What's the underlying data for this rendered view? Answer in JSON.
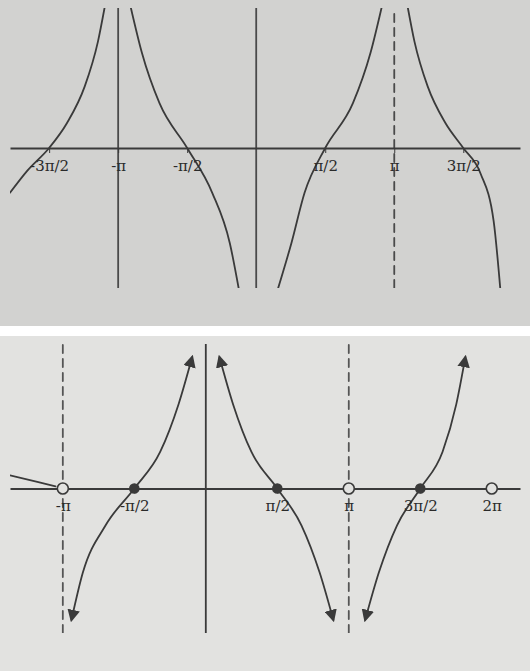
{
  "chart_data": [
    {
      "type": "line",
      "xlim": [
        -5.6,
        6.0
      ],
      "ylim": [
        -5,
        5
      ],
      "xticks": [
        {
          "value": -4.71,
          "label": "-3π/2"
        },
        {
          "value": -3.14,
          "label": "-π"
        },
        {
          "value": -1.57,
          "label": "-π/2"
        },
        {
          "value": 1.57,
          "label": "π/2"
        },
        {
          "value": 3.14,
          "label": "π"
        },
        {
          "value": 4.71,
          "label": "3π/2"
        }
      ],
      "tick_labels": "x",
      "grid": false,
      "series": [
        {
          "type": "line",
          "color": "#3a3a3a",
          "line_style": "solid",
          "x": [
            -5.6,
            -5.2,
            -4.71,
            -4.3,
            -3.9,
            -3.6,
            -3.45
          ],
          "values": [
            -1.6,
            -0.8,
            0,
            0.9,
            2.2,
            3.8,
            5
          ]
        },
        {
          "type": "line",
          "color": "#3a3a3a",
          "line_style": "solid",
          "x": [
            -2.85,
            -2.6,
            -2.2,
            -1.57,
            -1.0,
            -0.6,
            -0.4
          ],
          "values": [
            5,
            3.4,
            1.6,
            0,
            -1.6,
            -3.4,
            -5
          ]
        },
        {
          "type": "line",
          "color": "#3a3a3a",
          "line_style": "solid",
          "x": [
            0.5,
            0.8,
            1.1,
            1.57,
            2.2,
            2.6,
            2.85
          ],
          "values": [
            -5,
            -3.4,
            -1.6,
            0,
            1.6,
            3.4,
            5
          ]
        },
        {
          "type": "line",
          "color": "#3a3a3a",
          "line_style": "solid",
          "x": [
            3.45,
            3.6,
            3.9,
            4.3,
            4.71,
            5.1,
            5.4,
            5.55
          ],
          "values": [
            5,
            3.8,
            2.2,
            0.9,
            0,
            -0.9,
            -2.6,
            -5
          ]
        },
        {
          "type": "line",
          "color": "#4a4a4a",
          "line_style": "solid",
          "x": [
            -3.14,
            -3.14
          ],
          "values": [
            -5,
            5
          ]
        },
        {
          "type": "line",
          "color": "#4a4a4a",
          "line_style": "solid",
          "x": [
            0,
            0
          ],
          "values": [
            -5,
            5
          ]
        },
        {
          "type": "line",
          "color": "#4a4a4a",
          "line_style": "dashed",
          "x": [
            3.14,
            3.14
          ],
          "values": [
            -5,
            5
          ]
        }
      ]
    },
    {
      "type": "line",
      "xlim": [
        -4.3,
        6.9
      ],
      "ylim": [
        -5.5,
        5.5
      ],
      "xticks": [
        {
          "value": -3.14,
          "label": "-π"
        },
        {
          "value": -1.57,
          "label": "-π/2"
        },
        {
          "value": 1.57,
          "label": "π/2"
        },
        {
          "value": 3.14,
          "label": "π"
        },
        {
          "value": 4.71,
          "label": "3π/2"
        },
        {
          "value": 6.28,
          "label": "2π"
        }
      ],
      "tick_labels": "x",
      "grid": false,
      "series": [
        {
          "type": "line",
          "color": "#3a3a3a",
          "line_style": "solid",
          "x": [
            -4.3,
            -3.7,
            -3.3
          ],
          "values": [
            0.5,
            0.25,
            0.08
          ]
        },
        {
          "type": "line",
          "color": "#3a3a3a",
          "line_style": "solid",
          "marker": "arrow",
          "x": [
            -2.95,
            -2.7,
            -2.2,
            -1.57,
            -1.0,
            -0.6,
            -0.3
          ],
          "values": [
            -5,
            -3.2,
            -1.4,
            0,
            1.4,
            3.2,
            5
          ]
        },
        {
          "type": "line",
          "color": "#3a3a3a",
          "line_style": "solid",
          "marker": "arrow",
          "x": [
            0.3,
            0.6,
            1.0,
            1.57,
            2.1,
            2.5,
            2.8
          ],
          "values": [
            5,
            3.2,
            1.4,
            0,
            -1.4,
            -3.2,
            -5
          ]
        },
        {
          "type": "line",
          "color": "#3a3a3a",
          "line_style": "solid",
          "marker": "arrow",
          "x": [
            3.5,
            3.8,
            4.2,
            4.71,
            5.2,
            5.5,
            5.7
          ],
          "values": [
            -5,
            -3.2,
            -1.4,
            0,
            1.4,
            3.2,
            5
          ]
        },
        {
          "type": "line",
          "color": "#555555",
          "line_style": "dashed",
          "x": [
            -3.14,
            -3.14
          ],
          "values": [
            -5.5,
            5.5
          ]
        },
        {
          "type": "line",
          "color": "#3a3a3a",
          "line_style": "solid",
          "x": [
            0,
            0
          ],
          "values": [
            -5.5,
            5.5
          ]
        },
        {
          "type": "line",
          "color": "#555555",
          "line_style": "dashed",
          "x": [
            3.14,
            3.14
          ],
          "values": [
            -5.5,
            5.5
          ]
        },
        {
          "type": "scatter",
          "color": "#3a3a3a",
          "marker": "open-circle",
          "x": [
            -3.14,
            3.14,
            6.28
          ],
          "values": [
            0,
            0,
            0
          ]
        },
        {
          "type": "scatter",
          "color": "#3a3a3a",
          "marker": "circle",
          "x": [
            -1.57,
            1.57,
            4.71
          ],
          "values": [
            0,
            0,
            0
          ]
        }
      ]
    }
  ]
}
